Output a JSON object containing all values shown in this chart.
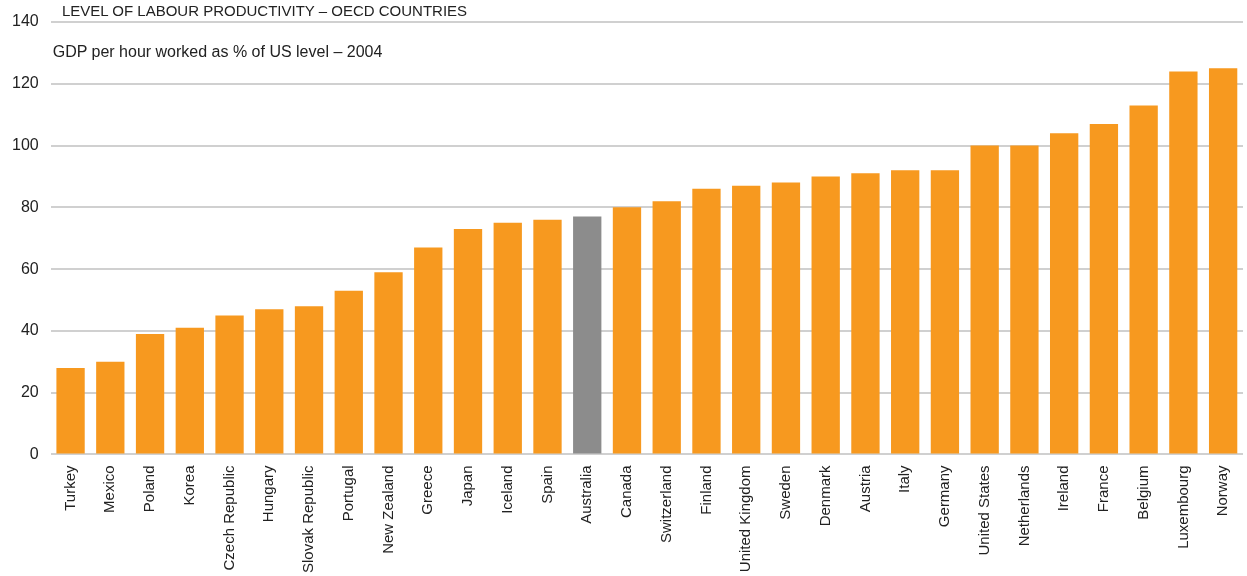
{
  "chart_data": {
    "type": "bar",
    "title": "LEVEL OF LABOUR PRODUCTIVITY – OECD COUNTRIES",
    "subtitle": "GDP per hour worked as % of US level – 2004",
    "categories": [
      "Turkey",
      "Mexico",
      "Poland",
      "Korea",
      "Czech Republic",
      "Hungary",
      "Slovak Republic",
      "Portugal",
      "New Zealand",
      "Greece",
      "Japan",
      "Iceland",
      "Spain",
      "Australia",
      "Canada",
      "Switzerland",
      "Finland",
      "United Kingdom",
      "Sweden",
      "Denmark",
      "Austria",
      "Italy",
      "Germany",
      "United States",
      "Netherlands",
      "Ireland",
      "France",
      "Belgium",
      "Luxembourg",
      "Norway"
    ],
    "values": [
      28,
      30,
      39,
      41,
      45,
      47,
      48,
      53,
      59,
      67,
      73,
      75,
      76,
      77,
      80,
      82,
      86,
      87,
      88,
      90,
      91,
      92,
      92,
      100,
      100,
      104,
      107,
      113,
      124,
      125
    ],
    "colors": [
      "#f7991f",
      "#f7991f",
      "#f7991f",
      "#f7991f",
      "#f7991f",
      "#f7991f",
      "#f7991f",
      "#f7991f",
      "#f7991f",
      "#f7991f",
      "#f7991f",
      "#f7991f",
      "#f7991f",
      "#8c8c8c",
      "#f7991f",
      "#f7991f",
      "#f7991f",
      "#f7991f",
      "#f7991f",
      "#f7991f",
      "#f7991f",
      "#f7991f",
      "#f7991f",
      "#f7991f",
      "#f7991f",
      "#f7991f",
      "#f7991f",
      "#f7991f",
      "#f7991f",
      "#f7991f"
    ],
    "ylim": [
      0,
      140
    ],
    "yticks": [
      0,
      20,
      40,
      60,
      80,
      100,
      120,
      140
    ],
    "grid": "y"
  }
}
